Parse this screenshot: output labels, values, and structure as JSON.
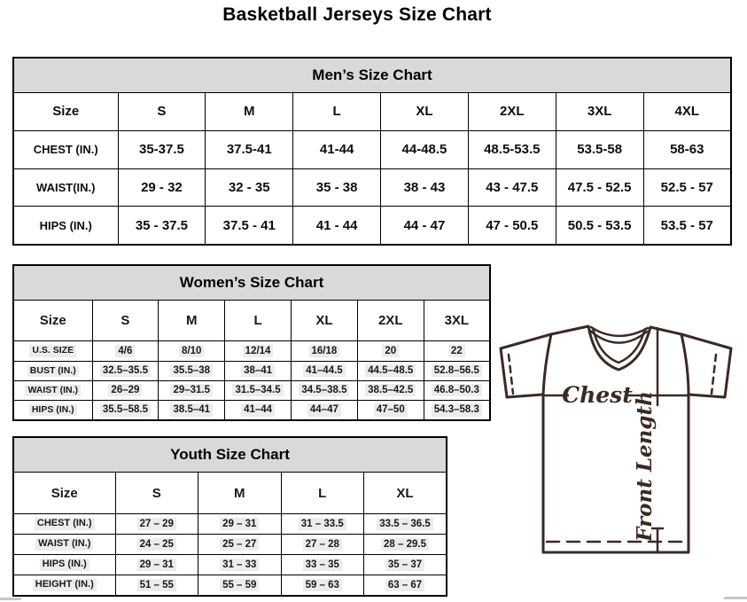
{
  "page_title": "Basketball Jerseys Size Chart",
  "tables": {
    "men": {
      "title": "Men’s Size Chart",
      "columns": [
        "Size",
        "S",
        "M",
        "L",
        "XL",
        "2XL",
        "3XL",
        "4XL"
      ],
      "rows": [
        {
          "label": "CHEST (IN.)",
          "values": [
            "35-37.5",
            "37.5-41",
            "41-44",
            "44-48.5",
            "48.5-53.5",
            "53.5-58",
            "58-63"
          ]
        },
        {
          "label": "WAIST(IN.)",
          "values": [
            "29 - 32",
            "32 - 35",
            "35 - 38",
            "38 - 43",
            "43 - 47.5",
            "47.5 - 52.5",
            "52.5 - 57"
          ]
        },
        {
          "label": "HIPS (IN.)",
          "values": [
            "35 - 37.5",
            "37.5 - 41",
            "41 - 44",
            "44 - 47",
            "47 - 50.5",
            "50.5 - 53.5",
            "53.5 - 57"
          ]
        }
      ]
    },
    "women": {
      "title": "Women’s Size Chart",
      "columns": [
        "Size",
        "S",
        "M",
        "L",
        "XL",
        "2XL",
        "3XL"
      ],
      "rows": [
        {
          "label": "U.S. SIZE",
          "values": [
            "4/6",
            "8/10",
            "12/14",
            "16/18",
            "20",
            "22"
          ]
        },
        {
          "label": "BUST (IN.)",
          "values": [
            "32.5–35.5",
            "35.5–38",
            "38–41",
            "41–44.5",
            "44.5–48.5",
            "52.8–56.5"
          ]
        },
        {
          "label": "WAIST (IN.)",
          "values": [
            "26–29",
            "29–31.5",
            "31.5–34.5",
            "34.5–38.5",
            "38.5–42.5",
            "46.8–50.3"
          ]
        },
        {
          "label": "HIPS (IN.)",
          "values": [
            "35.5–58.5",
            "38.5–41",
            "41–44",
            "44–47",
            "47–50",
            "54.3–58.3"
          ]
        }
      ]
    },
    "youth": {
      "title": "Youth Size Chart",
      "columns": [
        "Size",
        "S",
        "M",
        "L",
        "XL"
      ],
      "rows": [
        {
          "label": "CHEST (IN.)",
          "values": [
            "27 – 29",
            "29 – 31",
            "31 – 33.5",
            "33.5 – 36.5"
          ]
        },
        {
          "label": "WAIST (IN.)",
          "values": [
            "24 – 25",
            "25 – 27",
            "27 – 28",
            "28 – 29.5"
          ]
        },
        {
          "label": "HIPS (IN.)",
          "values": [
            "29 – 31",
            "31 – 33",
            "33 – 35",
            "35 – 37"
          ]
        },
        {
          "label": "HEIGHT (IN.)",
          "values": [
            "51 – 55",
            "55 – 59",
            "59 – 63",
            "63 – 67"
          ]
        }
      ]
    }
  },
  "diagram": {
    "chest_label": "Chest",
    "front_length_label": "Front Length",
    "line_color": "#3a2a24"
  },
  "colors": {
    "header_bg": "#d9d9d9",
    "border": "#000000",
    "background": "#ffffff"
  }
}
